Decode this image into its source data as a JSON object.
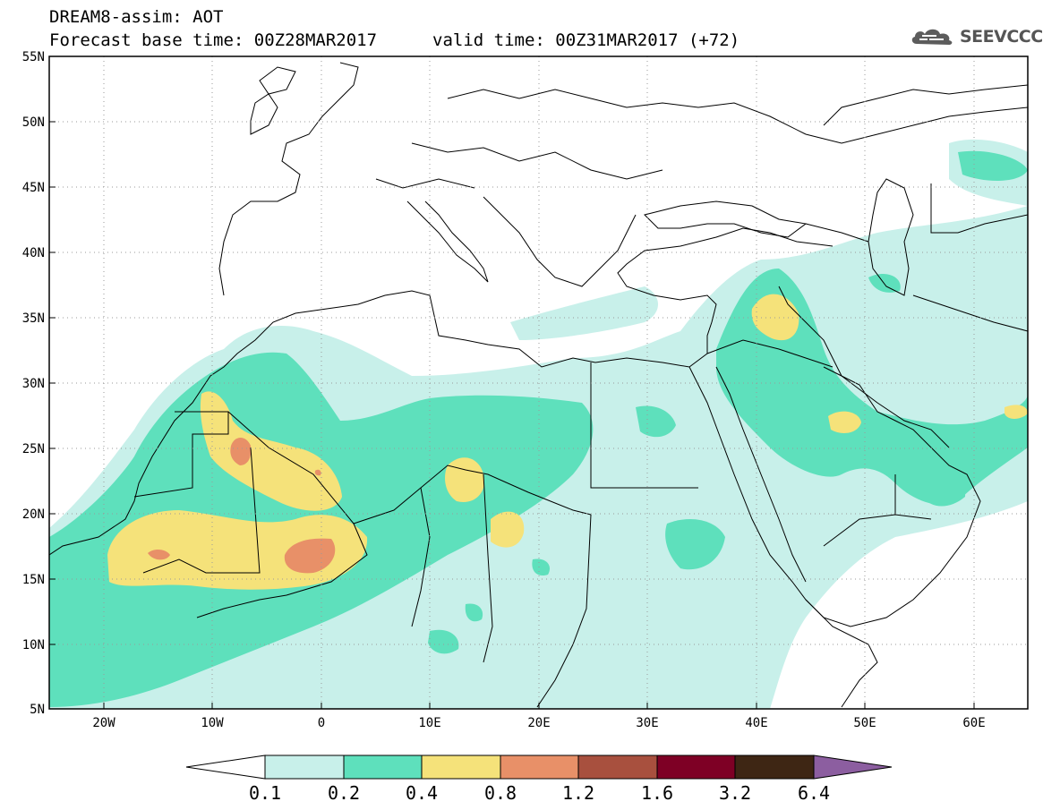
{
  "header": {
    "title": "DREAM8-assim: AOT",
    "base_time": "Forecast base time: 00Z28MAR2017",
    "valid_time": "valid time: 00Z31MAR2017 (+72)"
  },
  "logo": {
    "text": "SEEVCCC",
    "icon": "cloud-icon"
  },
  "map": {
    "lat_labels": [
      "55N",
      "50N",
      "45N",
      "40N",
      "35N",
      "30N",
      "25N",
      "20N",
      "15N",
      "10N",
      "5N"
    ],
    "lon_labels": [
      "20W",
      "10W",
      "0",
      "10E",
      "20E",
      "30E",
      "40E",
      "50E",
      "60E"
    ],
    "extent": {
      "lon_min": -25,
      "lon_max": 65,
      "lat_min": 5,
      "lat_max": 55
    }
  },
  "colorbar": {
    "labels": [
      "0.1",
      "0.2",
      "0.4",
      "0.8",
      "1.2",
      "1.6",
      "3.2",
      "6.4"
    ],
    "colors": [
      "#ffffff",
      "#c8f0ea",
      "#5ee0bc",
      "#f5e27a",
      "#e89068",
      "#a8503e",
      "#7e0025",
      "#3e2614",
      "#8c5ea0"
    ]
  }
}
